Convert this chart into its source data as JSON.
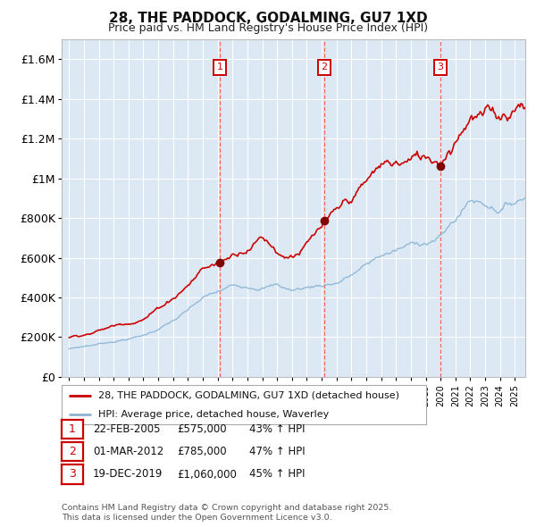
{
  "title": "28, THE PADDOCK, GODALMING, GU7 1XD",
  "subtitle": "Price paid vs. HM Land Registry's House Price Index (HPI)",
  "legend_house": "28, THE PADDOCK, GODALMING, GU7 1XD (detached house)",
  "legend_hpi": "HPI: Average price, detached house, Waverley",
  "footer_line1": "Contains HM Land Registry data © Crown copyright and database right 2025.",
  "footer_line2": "This data is licensed under the Open Government Licence v3.0.",
  "sales": [
    {
      "num": "1",
      "date": "22-FEB-2005",
      "price": "£575,000",
      "hpi_pct": "43% ↑ HPI",
      "t": 2005.14,
      "p": 575000
    },
    {
      "num": "2",
      "date": "01-MAR-2012",
      "price": "£785,000",
      "hpi_pct": "47% ↑ HPI",
      "t": 2012.17,
      "p": 785000
    },
    {
      "num": "3",
      "date": "19-DEC-2019",
      "price": "£1,060,000",
      "hpi_pct": "45% ↑ HPI",
      "t": 2019.97,
      "p": 1060000
    }
  ],
  "ylim": [
    0,
    1700000
  ],
  "yticks": [
    0,
    200000,
    400000,
    600000,
    800000,
    1000000,
    1200000,
    1400000,
    1600000
  ],
  "ytick_labels": [
    "£0",
    "£200K",
    "£400K",
    "£600K",
    "£800K",
    "£1M",
    "£1.2M",
    "£1.4M",
    "£1.6M"
  ],
  "xlim_start": 1994.5,
  "xlim_end": 2025.7,
  "xticks": [
    1995,
    1996,
    1997,
    1998,
    1999,
    2000,
    2001,
    2002,
    2003,
    2004,
    2005,
    2006,
    2007,
    2008,
    2009,
    2010,
    2011,
    2012,
    2013,
    2014,
    2015,
    2016,
    2017,
    2018,
    2019,
    2020,
    2021,
    2022,
    2023,
    2024,
    2025
  ],
  "fig_bg": "#ffffff",
  "chart_bg": "#dce9f5",
  "house_color": "#cc0000",
  "hpi_color": "#8ab4d4",
  "marker_color": "#800000",
  "vline_color": "#ff6060",
  "grid_color": "#ffffff",
  "box_color": "#cc0000",
  "title_fontsize": 11,
  "subtitle_fontsize": 9,
  "axis_fontsize": 9,
  "tick_fontsize": 8
}
